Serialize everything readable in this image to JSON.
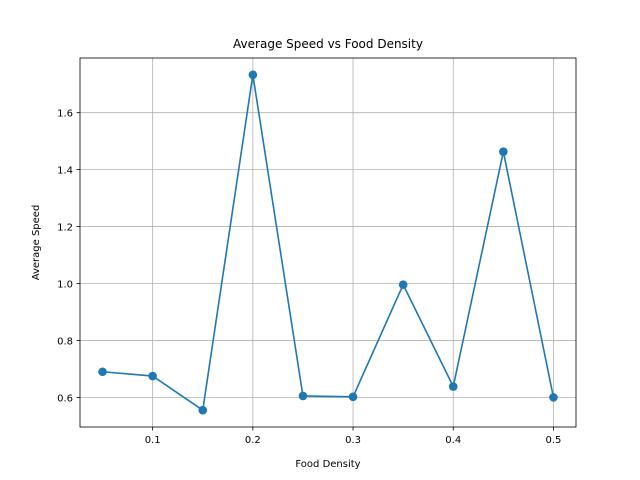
{
  "chart_data": {
    "type": "line",
    "title": "Average Speed vs Food Density",
    "xlabel": "Food Density",
    "ylabel": "Average Speed",
    "x": [
      0.05,
      0.1,
      0.15,
      0.2,
      0.25,
      0.3,
      0.35,
      0.4,
      0.45,
      0.5
    ],
    "series": [
      {
        "values": [
          0.69,
          0.675,
          0.555,
          1.733,
          0.605,
          0.602,
          0.996,
          0.638,
          1.463,
          0.6
        ],
        "color": "#1f77b4",
        "marker": "circle"
      }
    ],
    "xlim": [
      0.0275,
      0.5225
    ],
    "ylim": [
      0.496,
      1.792
    ],
    "xticks": [
      0.1,
      0.2,
      0.3,
      0.4,
      0.5
    ],
    "xtick_labels": [
      "0.1",
      "0.2",
      "0.3",
      "0.4",
      "0.5"
    ],
    "yticks": [
      0.6,
      0.8,
      1.0,
      1.2,
      1.4,
      1.6
    ],
    "ytick_labels": [
      "0.6",
      "0.8",
      "1.0",
      "1.2",
      "1.4",
      "1.6"
    ],
    "grid": true,
    "colors": {
      "line": "#1f77b4",
      "grid": "#b0b0b0",
      "axis": "#000000"
    }
  }
}
